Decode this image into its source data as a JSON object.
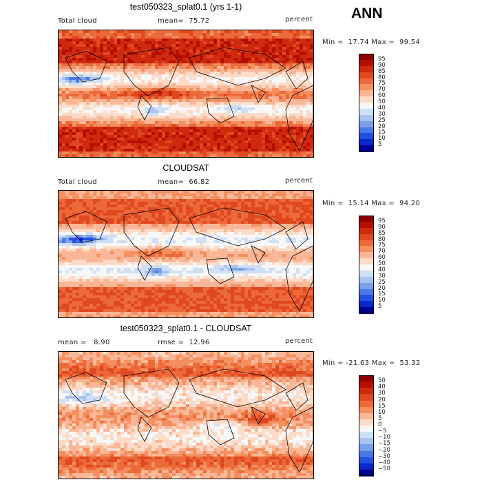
{
  "season": "ANN",
  "panels": [
    {
      "title": "test050323_splat0.1 (yrs 1-1)",
      "left_label": "Total cloud",
      "mid_label": "mean=  75.72",
      "right_label": "percent",
      "minmax": "Min =  17.74 Max =  99.54",
      "mean": 75.72,
      "min": 17.74,
      "max": 99.54
    },
    {
      "title": "CLOUDSAT",
      "left_label": "Total cloud",
      "mid_label": "mean=  66.82",
      "right_label": "percent",
      "minmax": "Min =  15.14 Max =  94.20",
      "mean": 66.82,
      "min": 15.14,
      "max": 94.2
    },
    {
      "title": "test050323_splat0.1 - CLOUDSAT",
      "left_label": "mean =   8.90",
      "mid_label": "rmse =  12.96",
      "right_label": "percent",
      "minmax": "Min = -21.63 Max =  53.32",
      "mean": 8.9,
      "rmse": 12.96,
      "min": -21.63,
      "max": 53.32
    }
  ],
  "colorbars": {
    "abs": {
      "ticks": [
        "95",
        "90",
        "85",
        "80",
        "75",
        "70",
        "60",
        "50",
        "40",
        "30",
        "25",
        "20",
        "15",
        "10",
        "5"
      ],
      "colors": [
        "#8b0000",
        "#b50f00",
        "#cf2a0e",
        "#e0481f",
        "#ec6a3a",
        "#f48f60",
        "#f9b797",
        "#fcdcc8",
        "#f7f7f7",
        "#cfe0f6",
        "#a8c3f0",
        "#7aa0ea",
        "#4a78e6",
        "#2450e0",
        "#0a28c8",
        "#000090"
      ]
    },
    "diff": {
      "ticks": [
        "50",
        "40",
        "30",
        "20",
        "15",
        "10",
        "5",
        "0",
        "−5",
        "−10",
        "−15",
        "−20",
        "−30",
        "−40",
        "−50"
      ],
      "colors": [
        "#8b0000",
        "#b50f00",
        "#cf2a0e",
        "#e0481f",
        "#ec6a3a",
        "#f48f60",
        "#f9b797",
        "#fcdcc8",
        "#f7f7f7",
        "#cfe0f6",
        "#a8c3f0",
        "#7aa0ea",
        "#4a78e6",
        "#2450e0",
        "#0a28c8",
        "#000090"
      ]
    }
  },
  "chart_data": [
    {
      "type": "heatmap",
      "title": "test050323_splat0.1 (yrs 1-1)",
      "variable": "Total cloud",
      "units": "percent",
      "mean": 75.72,
      "min": 17.74,
      "max": 99.54,
      "levels": [
        5,
        10,
        15,
        20,
        25,
        30,
        40,
        50,
        60,
        70,
        75,
        80,
        85,
        90,
        95
      ]
    },
    {
      "type": "heatmap",
      "title": "CLOUDSAT",
      "variable": "Total cloud",
      "units": "percent",
      "mean": 66.82,
      "min": 15.14,
      "max": 94.2,
      "levels": [
        5,
        10,
        15,
        20,
        25,
        30,
        40,
        50,
        60,
        70,
        75,
        80,
        85,
        90,
        95
      ]
    },
    {
      "type": "heatmap",
      "title": "test050323_splat0.1 - CLOUDSAT",
      "units": "percent",
      "mean": 8.9,
      "rmse": 12.96,
      "min": -21.63,
      "max": 53.32,
      "levels": [
        -50,
        -40,
        -30,
        -20,
        -15,
        -10,
        -5,
        0,
        5,
        10,
        15,
        20,
        30,
        40,
        50
      ]
    }
  ]
}
